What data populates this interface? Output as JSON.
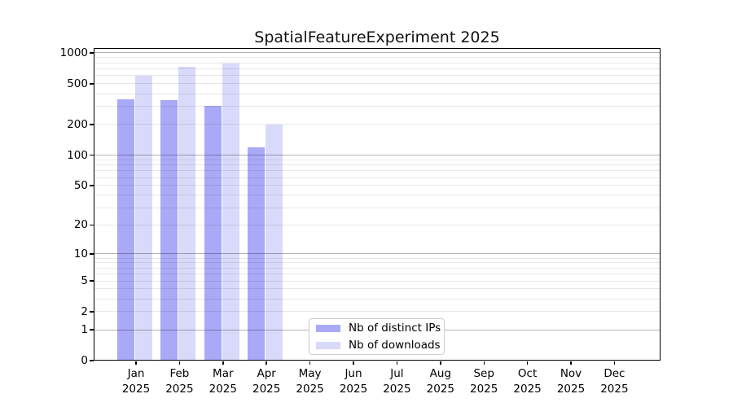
{
  "page": {
    "background": "#ffffff"
  },
  "chart_data": {
    "type": "bar",
    "title": "SpatialFeatureExperiment 2025",
    "x_tick_months": [
      "Jan",
      "Feb",
      "Mar",
      "Apr",
      "May",
      "Jun",
      "Jul",
      "Aug",
      "Sep",
      "Oct",
      "Nov",
      "Dec"
    ],
    "x_tick_year": "2025",
    "series": [
      {
        "name": "Nb of distinct IPs",
        "color": "#a9a9f7",
        "values": [
          350,
          345,
          305,
          119,
          0,
          0,
          0,
          0,
          0,
          0,
          0,
          0
        ]
      },
      {
        "name": "Nb of downloads",
        "color": "#d9d9f9",
        "values": [
          600,
          730,
          790,
          199,
          0,
          0,
          0,
          0,
          0,
          0,
          0,
          0
        ]
      }
    ],
    "y_axis": {
      "scale": "log1p",
      "ticks": [
        0,
        1,
        2,
        5,
        10,
        20,
        50,
        100,
        200,
        500,
        1000
      ],
      "ylim": [
        0,
        1120
      ]
    },
    "grid": {
      "major_color": "#b3b3b3",
      "minor_color": "#e8e8e8",
      "minor_on": true
    },
    "legend": {
      "position": "lower center",
      "border_color": "#cccccc",
      "background": "#ffffff"
    }
  }
}
